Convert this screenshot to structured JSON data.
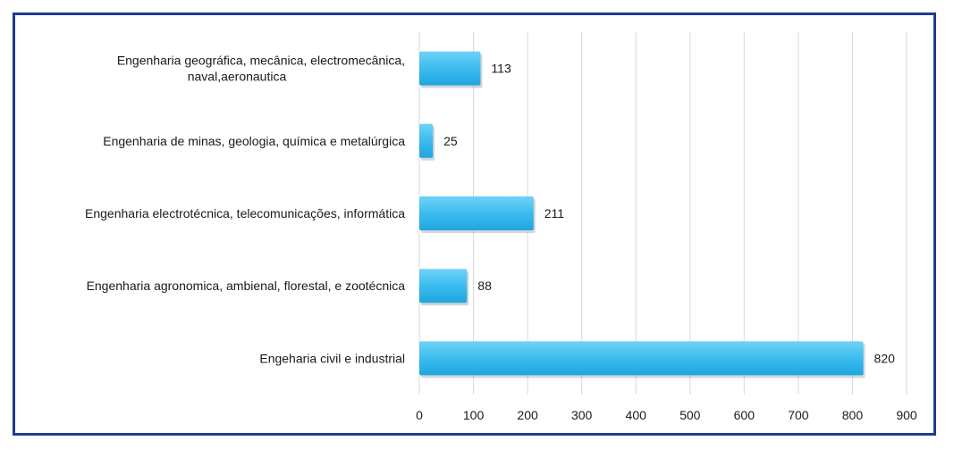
{
  "chart_data": {
    "type": "bar",
    "orientation": "horizontal",
    "categories": [
      [
        "Engenharia geográfica, mecânica, electromecânica,",
        "naval,aeronautica"
      ],
      [
        "Engenharia de minas, geologia, química e metalúrgica"
      ],
      [
        "Engenharia electrotécnica, telecomunicações, informática"
      ],
      [
        "Engenharia agronomica, ambienal, florestal, e zootécnica"
      ],
      [
        "Engeharia civil e industrial"
      ]
    ],
    "values": [
      113,
      25,
      211,
      88,
      820
    ],
    "xlim": [
      0,
      900
    ],
    "xticks": [
      "0",
      "100",
      "200",
      "300",
      "400",
      "500",
      "600",
      "700",
      "800",
      "900"
    ],
    "grid": true,
    "bar_color": "#3bbcef",
    "frame_color": "#1f3a93"
  }
}
